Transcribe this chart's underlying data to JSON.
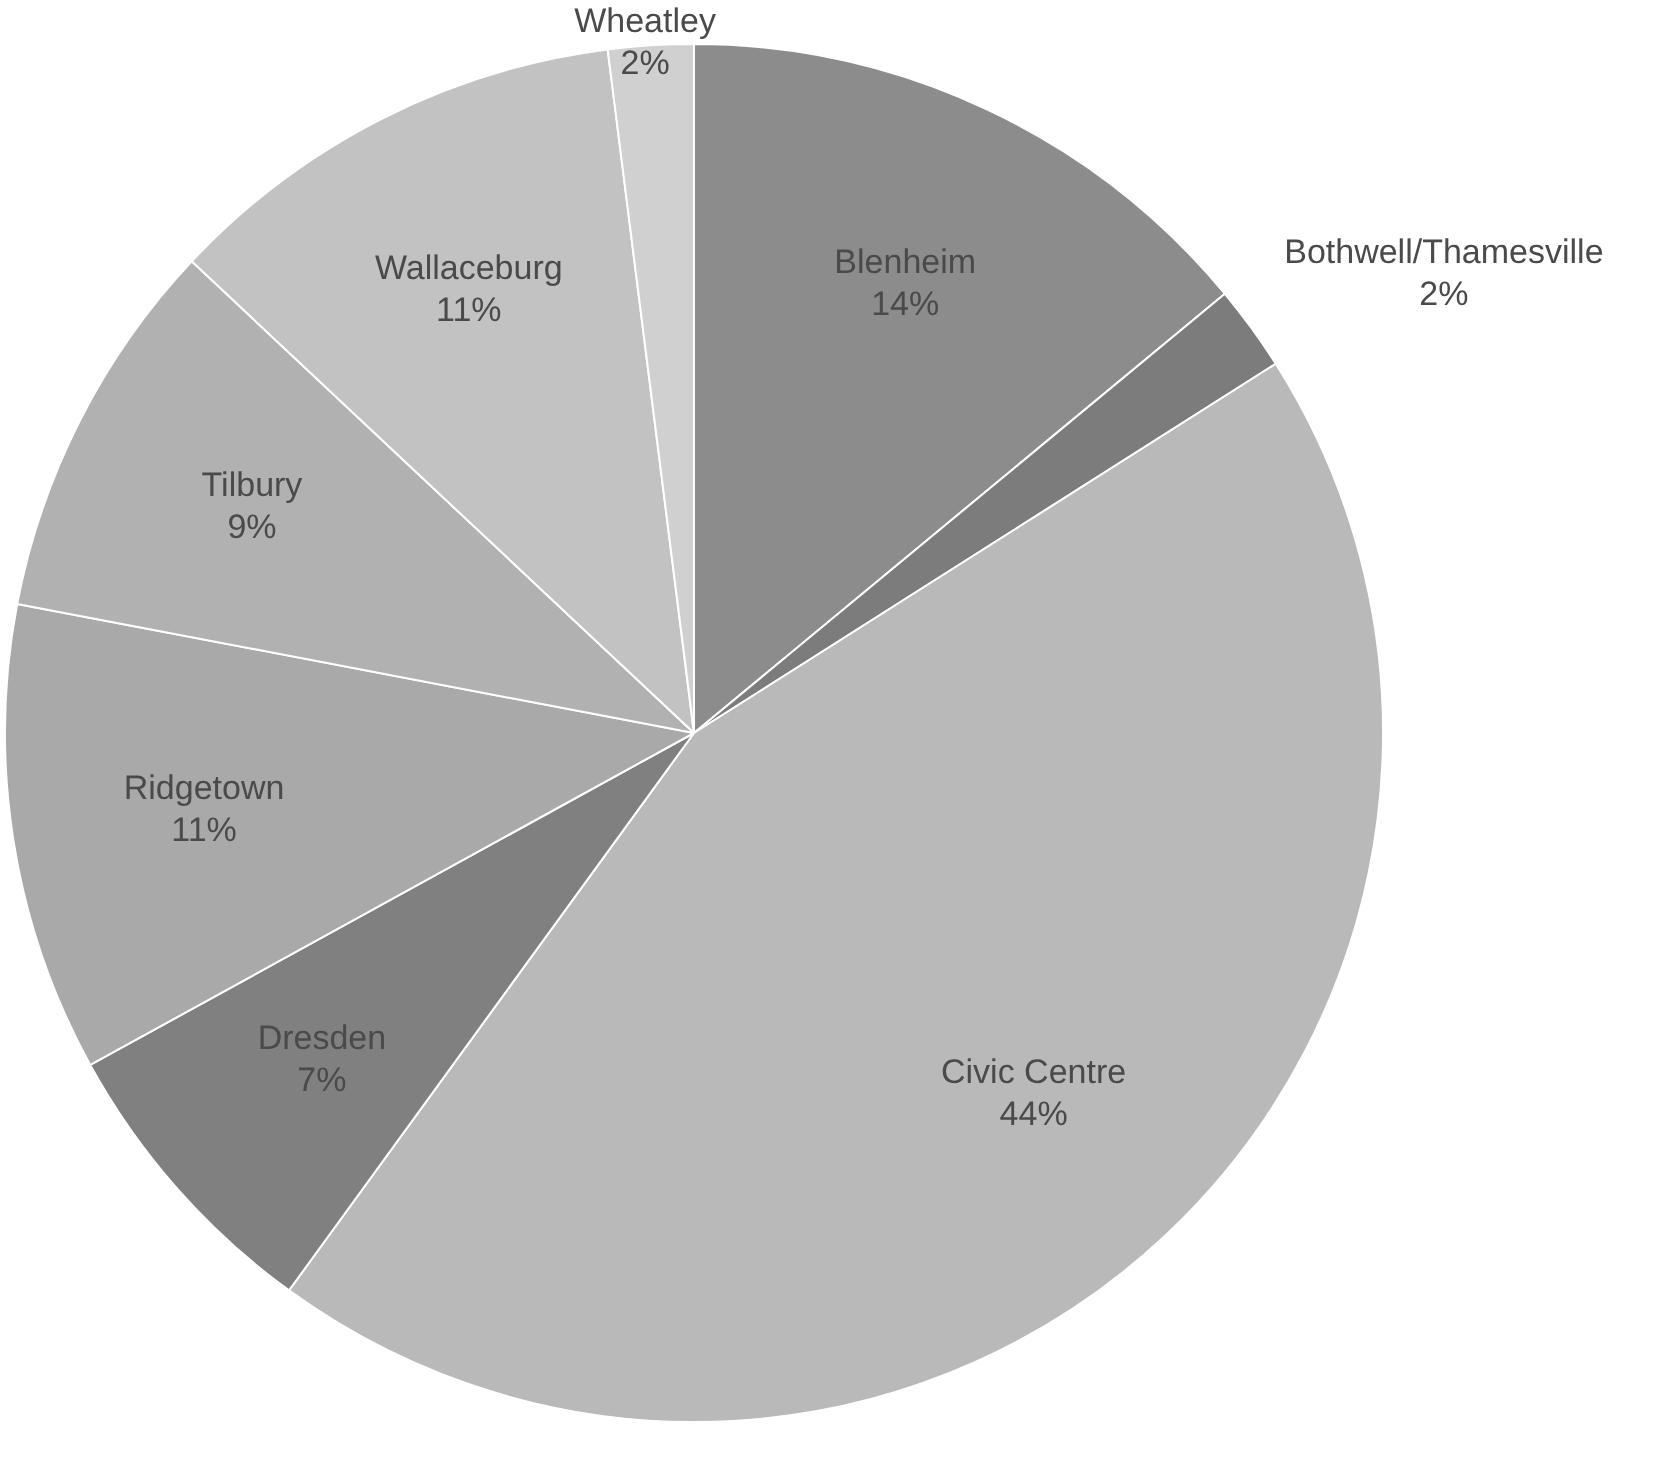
{
  "chart_data": {
    "type": "pie",
    "categories": [
      "Blenheim",
      "Bothwell/Thamesville",
      "Civic Centre",
      "Dresden",
      "Ridgetown",
      "Tilbury",
      "Wallaceburg",
      "Wheatley"
    ],
    "values": [
      14,
      2,
      44,
      7,
      11,
      9,
      11,
      2
    ],
    "value_labels": [
      "14%",
      "2%",
      "44%",
      "7%",
      "11%",
      "9%",
      "11%",
      "2%"
    ],
    "colors": [
      "#8c8c8c",
      "#7c7c7c",
      "#b9b9b9",
      "#808080",
      "#a9a9a9",
      "#b1b1b1",
      "#c2c2c2",
      "#d0d0d0"
    ],
    "legend": false
  }
}
